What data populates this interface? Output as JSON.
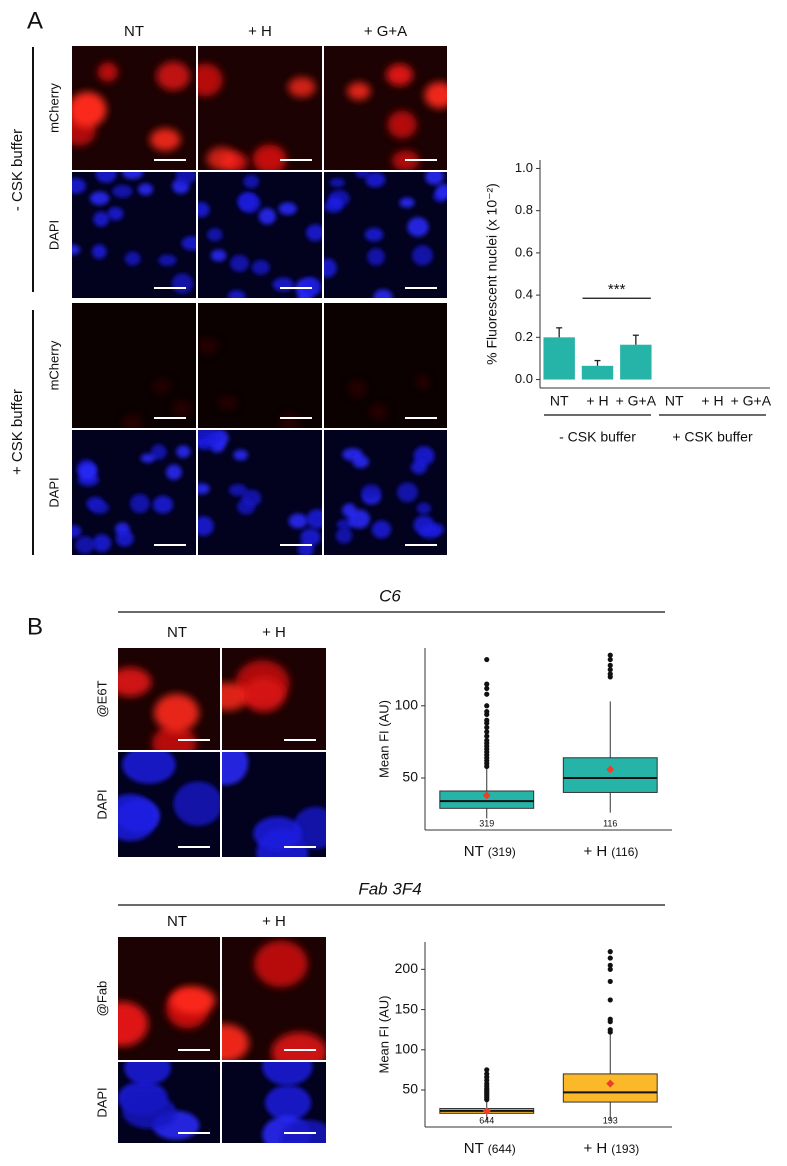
{
  "panels": {
    "a": "A",
    "b": "B"
  },
  "panel_a": {
    "columns": [
      "NT",
      "+ H",
      "+ G+A"
    ],
    "groups": [
      "- CSK buffer",
      "+ CSK buffer"
    ],
    "rows": [
      "mCherry",
      "DAPI",
      "mCherry",
      "DAPI"
    ]
  },
  "panel_b": {
    "sections": [
      {
        "title": "C6",
        "columns": [
          "NT",
          "+ H"
        ],
        "rows": [
          "@E6T",
          "DAPI"
        ]
      },
      {
        "title": "Fab 3F4",
        "columns": [
          "NT",
          "+ H"
        ],
        "rows": [
          "@Fab",
          "DAPI"
        ]
      }
    ]
  },
  "chart_data": [
    {
      "type": "bar",
      "ylabel": "% Fluorescent nuclei (x 10⁻²)",
      "categories": [
        "NT",
        "+ H",
        "+ G+A",
        "NT",
        "+ H",
        "+ G+A"
      ],
      "groups": [
        "- CSK buffer",
        "+ CSK buffer"
      ],
      "values": [
        0.2,
        0.065,
        0.165,
        0,
        0,
        0
      ],
      "errors": [
        0.045,
        0.025,
        0.045,
        0,
        0,
        0
      ],
      "annotation": "***",
      "color": "#27b4a8",
      "ylim": [
        -0.04,
        1.04
      ],
      "yticks": [
        {
          "value": 0,
          "label": "0.0"
        },
        0.2,
        0.4,
        0.6,
        0.8,
        {
          "value": 1,
          "label": "1.0"
        }
      ]
    },
    {
      "type": "box",
      "ylabel": "Mean FI (AU)",
      "categories": [
        "NT",
        "+ H"
      ],
      "n": [
        319,
        116
      ],
      "n_labels": [
        "(319)",
        "(116)"
      ],
      "color": "#27b4a8",
      "mean_color": "#e8402a",
      "whisker_low": [
        22,
        26
      ],
      "q1": [
        29,
        40
      ],
      "median": [
        34,
        50
      ],
      "q3": [
        41,
        64
      ],
      "whisker_high": [
        57,
        103
      ],
      "mean": [
        38,
        56
      ],
      "outliers": [
        [
          58,
          60,
          62,
          64,
          66,
          68,
          70,
          72,
          74,
          76,
          79,
          82,
          85,
          88,
          90,
          94,
          96,
          100,
          108,
          112,
          115,
          132
        ],
        [
          120,
          122,
          125,
          128,
          132,
          135
        ]
      ],
      "ylim": [
        14,
        140
      ],
      "yticks": [
        50,
        100
      ]
    },
    {
      "type": "box",
      "ylabel": "Mean FI (AU)",
      "categories": [
        "NT",
        "+ H"
      ],
      "n": [
        644,
        193
      ],
      "n_labels": [
        "(644)",
        "(193)"
      ],
      "color": "#fbb829",
      "mean_color": "#e8402a",
      "whisker_low": [
        12,
        12
      ],
      "q1": [
        21,
        35
      ],
      "median": [
        24,
        47
      ],
      "q3": [
        27,
        70
      ],
      "whisker_high": [
        36,
        120
      ],
      "mean": [
        24,
        58
      ],
      "outliers": [
        [
          38,
          40,
          42,
          44,
          46,
          48,
          50,
          52,
          55,
          58,
          62,
          66,
          70,
          75
        ],
        [
          122,
          125,
          135,
          138,
          162,
          185,
          200,
          205,
          214,
          222
        ]
      ],
      "ylim": [
        4,
        234
      ],
      "yticks": [
        50,
        100,
        150,
        200
      ]
    }
  ]
}
